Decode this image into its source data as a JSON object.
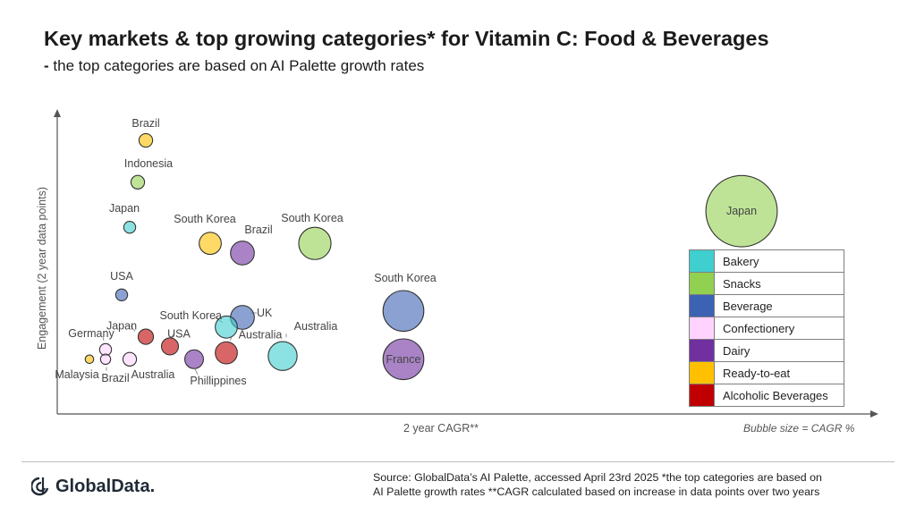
{
  "header": {
    "title": "Key markets & top growing categories* for Vitamin C: Food & Beverages",
    "subtitle_dash": "-",
    "subtitle": "the top categories are based on AI Palette growth rates"
  },
  "chart_data": {
    "type": "scatter",
    "title": "Key markets & top growing categories* for Vitamin C: Food & Beverages",
    "subtitle": "the top categories are based on AI Palette growth rates",
    "xlabel": "2 year CAGR**",
    "ylabel": "Engagement (2 year data points)",
    "size_note": "Bubble size = CAGR %",
    "legend": [
      {
        "name": "Bakery",
        "color": "#3fcfcf"
      },
      {
        "name": "Snacks",
        "color": "#92d050"
      },
      {
        "name": "Beverage",
        "color": "#3c62b4"
      },
      {
        "name": "Confectionery",
        "color": "#ffd3ff"
      },
      {
        "name": "Dairy",
        "color": "#7030a0"
      },
      {
        "name": "Ready-to-eat",
        "color": "#ffc000"
      },
      {
        "name": "Alcoholic Beverages",
        "color": "#c00000"
      }
    ],
    "points": [
      {
        "label": "Brazil",
        "category": "Ready-to-eat",
        "x": 11,
        "y": 85,
        "size": 8
      },
      {
        "label": "Indonesia",
        "category": "Snacks",
        "x": 10,
        "y": 72,
        "size": 8
      },
      {
        "label": "Japan",
        "category": "Bakery",
        "x": 9,
        "y": 58,
        "size": 7
      },
      {
        "label": "South Korea",
        "category": "Ready-to-eat",
        "x": 19,
        "y": 53,
        "size": 13
      },
      {
        "label": "Brazil",
        "category": "Dairy",
        "x": 23,
        "y": 50,
        "size": 14
      },
      {
        "label": "South Korea",
        "category": "Snacks",
        "x": 32,
        "y": 53,
        "size": 19
      },
      {
        "label": "USA",
        "category": "Beverage",
        "x": 8,
        "y": 37,
        "size": 7
      },
      {
        "label": "South Korea",
        "category": "Beverage",
        "x": 43,
        "y": 32,
        "size": 24
      },
      {
        "label": "UK",
        "category": "Beverage",
        "x": 23,
        "y": 30,
        "size": 14
      },
      {
        "label": "South Korea",
        "category": "Bakery",
        "x": 21,
        "y": 27,
        "size": 13
      },
      {
        "label": "Japan",
        "category": "Alcoholic Beverages",
        "x": 11,
        "y": 24,
        "size": 9
      },
      {
        "label": "USA",
        "category": "Alcoholic Beverages",
        "x": 14,
        "y": 21,
        "size": 10
      },
      {
        "label": "Germany",
        "category": "Confectionery",
        "x": 6,
        "y": 20,
        "size": 7
      },
      {
        "label": "Australia",
        "category": "Alcoholic Beverages",
        "x": 21,
        "y": 19,
        "size": 13
      },
      {
        "label": "Australia",
        "category": "Bakery",
        "x": 28,
        "y": 18,
        "size": 17
      },
      {
        "label": "France",
        "category": "Dairy",
        "x": 43,
        "y": 17,
        "size": 24
      },
      {
        "label": "Phillippines",
        "category": "Dairy",
        "x": 17,
        "y": 17,
        "size": 11
      },
      {
        "label": "Australia",
        "category": "Confectionery",
        "x": 9,
        "y": 17,
        "size": 8
      },
      {
        "label": "Brazil",
        "category": "Confectionery",
        "x": 6,
        "y": 17,
        "size": 6
      },
      {
        "label": "Malaysia",
        "category": "Ready-to-eat",
        "x": 4,
        "y": 17,
        "size": 5
      },
      {
        "label": "Japan",
        "category": "Snacks",
        "x": 85,
        "y": 63,
        "size": 42
      }
    ]
  },
  "footer": {
    "logo_text": "GlobalData.",
    "source_line1": "Source: GlobalData’s AI Palette, accessed April 23rd 2025 *the top categories are based on",
    "source_line2": "AI Palette growth rates **CAGR calculated based on increase in data points over two years"
  }
}
